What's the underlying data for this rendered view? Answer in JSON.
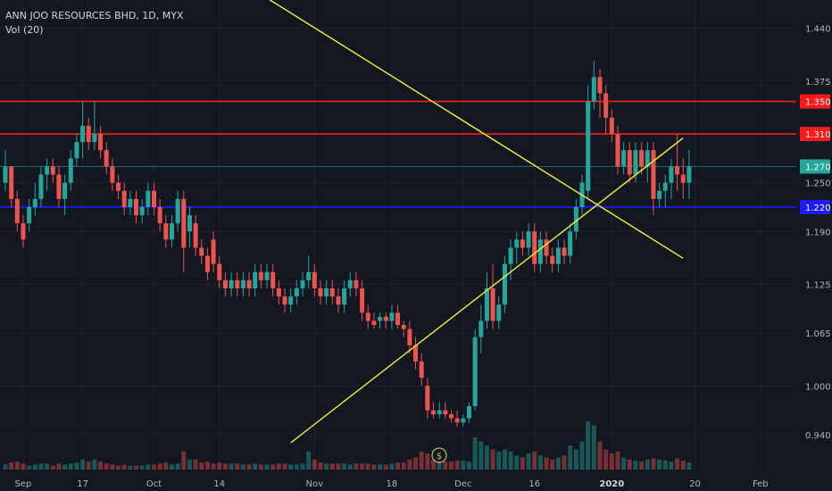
{
  "header": {
    "symbol_line": "ANN JOO RESOURCES BHD, 1D, MYX",
    "volume_label": "Vol (20)"
  },
  "colors": {
    "background": "#131722",
    "up": "#26a69a",
    "down": "#ef5350",
    "grid": "#1e222d",
    "axis_text": "#b2b5be",
    "resistance": "#ff1a1a",
    "support": "#1c1cff",
    "trendline": "#f2f23a"
  },
  "chart_data": {
    "type": "candlestick",
    "title": "ANN JOO RESOURCES BHD, 1D, MYX",
    "price_axis": {
      "ticks": [
        "1.440",
        "1.375",
        "1.310",
        "1.250",
        "1.190",
        "1.125",
        "1.065",
        "1.000",
        "0.940"
      ],
      "ylim": [
        0.93,
        1.455
      ]
    },
    "time_axis": {
      "ticks": [
        "Sep",
        "17",
        "Oct",
        "14",
        "Nov",
        "18",
        "Dec",
        "16",
        "2020",
        "20",
        "Feb"
      ]
    },
    "price_labels": [
      {
        "value": "1.350",
        "color": "#ff1a1a"
      },
      {
        "value": "1.310",
        "color": "#ff1a1a"
      },
      {
        "value": "1.270",
        "color": "#26a69a"
      },
      {
        "value": "1.220",
        "color": "#1c1cff"
      }
    ],
    "horizontal_lines": [
      {
        "price": 1.35,
        "color": "#ff1a1a",
        "role": "resistance"
      },
      {
        "price": 1.31,
        "color": "#ff1a1a",
        "role": "resistance"
      },
      {
        "price": 1.27,
        "color": "#26a69a",
        "role": "last price"
      },
      {
        "price": 1.22,
        "color": "#1c1cff",
        "role": "support"
      }
    ],
    "trendlines": [
      {
        "role": "descending",
        "from": {
          "bar": 39,
          "price": 1.5
        },
        "to": {
          "bar": 114,
          "price": 1.157
        }
      },
      {
        "role": "ascending",
        "from": {
          "bar": 48,
          "price": 0.93
        },
        "to": {
          "bar": 114,
          "price": 1.305
        }
      }
    ],
    "candles": [
      [
        1.25,
        1.29,
        1.24,
        1.27,
        0.25
      ],
      [
        1.27,
        1.27,
        1.22,
        1.23,
        0.35
      ],
      [
        1.23,
        1.24,
        1.19,
        1.2,
        0.4
      ],
      [
        1.2,
        1.21,
        1.17,
        1.18,
        0.3
      ],
      [
        1.2,
        1.23,
        1.19,
        1.22,
        0.2
      ],
      [
        1.22,
        1.25,
        1.21,
        1.23,
        0.25
      ],
      [
        1.23,
        1.27,
        1.22,
        1.26,
        0.3
      ],
      [
        1.26,
        1.28,
        1.24,
        1.27,
        0.3
      ],
      [
        1.27,
        1.28,
        1.25,
        1.26,
        0.2
      ],
      [
        1.26,
        1.27,
        1.22,
        1.23,
        0.3
      ],
      [
        1.23,
        1.26,
        1.21,
        1.25,
        0.25
      ],
      [
        1.25,
        1.29,
        1.24,
        1.28,
        0.3
      ],
      [
        1.28,
        1.31,
        1.27,
        1.3,
        0.35
      ],
      [
        1.3,
        1.35,
        1.28,
        1.32,
        0.5
      ],
      [
        1.32,
        1.33,
        1.29,
        1.3,
        0.4
      ],
      [
        1.3,
        1.35,
        1.29,
        1.31,
        0.5
      ],
      [
        1.31,
        1.32,
        1.28,
        1.29,
        0.4
      ],
      [
        1.29,
        1.3,
        1.26,
        1.27,
        0.3
      ],
      [
        1.27,
        1.28,
        1.24,
        1.25,
        0.25
      ],
      [
        1.25,
        1.26,
        1.23,
        1.24,
        0.2
      ],
      [
        1.24,
        1.25,
        1.21,
        1.22,
        0.25
      ],
      [
        1.22,
        1.24,
        1.21,
        1.23,
        0.2
      ],
      [
        1.23,
        1.24,
        1.2,
        1.21,
        0.2
      ],
      [
        1.21,
        1.23,
        1.2,
        1.22,
        0.2
      ],
      [
        1.22,
        1.25,
        1.21,
        1.24,
        0.25
      ],
      [
        1.24,
        1.25,
        1.21,
        1.22,
        0.25
      ],
      [
        1.22,
        1.23,
        1.19,
        1.2,
        0.3
      ],
      [
        1.2,
        1.21,
        1.17,
        1.18,
        0.35
      ],
      [
        1.18,
        1.21,
        1.17,
        1.2,
        0.25
      ],
      [
        1.2,
        1.24,
        1.19,
        1.23,
        0.3
      ],
      [
        1.23,
        1.24,
        1.14,
        1.17,
        0.9
      ],
      [
        1.19,
        1.22,
        1.17,
        1.21,
        0.5
      ],
      [
        1.2,
        1.21,
        1.16,
        1.17,
        0.5
      ],
      [
        1.17,
        1.18,
        1.15,
        1.16,
        0.35
      ],
      [
        1.16,
        1.17,
        1.13,
        1.14,
        0.4
      ],
      [
        1.18,
        1.19,
        1.14,
        1.15,
        0.3
      ],
      [
        1.15,
        1.16,
        1.12,
        1.13,
        0.35
      ],
      [
        1.13,
        1.14,
        1.11,
        1.12,
        0.3
      ],
      [
        1.12,
        1.14,
        1.11,
        1.13,
        0.3
      ],
      [
        1.13,
        1.14,
        1.11,
        1.12,
        0.3
      ],
      [
        1.12,
        1.14,
        1.11,
        1.13,
        0.25
      ],
      [
        1.13,
        1.14,
        1.11,
        1.12,
        0.25
      ],
      [
        1.12,
        1.15,
        1.11,
        1.14,
        0.3
      ],
      [
        1.14,
        1.15,
        1.12,
        1.13,
        0.25
      ],
      [
        1.13,
        1.15,
        1.12,
        1.14,
        0.25
      ],
      [
        1.14,
        1.15,
        1.11,
        1.12,
        0.25
      ],
      [
        1.12,
        1.13,
        1.1,
        1.11,
        0.3
      ],
      [
        1.11,
        1.12,
        1.09,
        1.1,
        0.3
      ],
      [
        1.1,
        1.12,
        1.09,
        1.11,
        0.25
      ],
      [
        1.11,
        1.13,
        1.1,
        1.12,
        0.25
      ],
      [
        1.12,
        1.14,
        1.11,
        1.13,
        0.3
      ],
      [
        1.13,
        1.16,
        1.12,
        1.14,
        0.9
      ],
      [
        1.14,
        1.15,
        1.11,
        1.12,
        0.5
      ],
      [
        1.12,
        1.13,
        1.1,
        1.11,
        0.35
      ],
      [
        1.11,
        1.13,
        1.1,
        1.12,
        0.3
      ],
      [
        1.12,
        1.13,
        1.1,
        1.11,
        0.3
      ],
      [
        1.11,
        1.12,
        1.09,
        1.1,
        0.3
      ],
      [
        1.1,
        1.13,
        1.09,
        1.12,
        0.3
      ],
      [
        1.12,
        1.14,
        1.11,
        1.13,
        0.25
      ],
      [
        1.13,
        1.14,
        1.11,
        1.12,
        0.3
      ],
      [
        1.12,
        1.13,
        1.08,
        1.09,
        0.3
      ],
      [
        1.09,
        1.1,
        1.07,
        1.08,
        0.3
      ],
      [
        1.08,
        1.09,
        1.07,
        1.075,
        0.25
      ],
      [
        1.08,
        1.09,
        1.07,
        1.085,
        0.25
      ],
      [
        1.085,
        1.09,
        1.07,
        1.08,
        0.25
      ],
      [
        1.08,
        1.1,
        1.07,
        1.09,
        0.3
      ],
      [
        1.09,
        1.1,
        1.07,
        1.075,
        0.35
      ],
      [
        1.075,
        1.08,
        1.06,
        1.07,
        0.35
      ],
      [
        1.07,
        1.08,
        1.04,
        1.05,
        0.5
      ],
      [
        1.05,
        1.06,
        1.02,
        1.03,
        0.6
      ],
      [
        1.03,
        1.04,
        1.0,
        1.01,
        0.9
      ],
      [
        1.0,
        1.01,
        0.96,
        0.97,
        0.8
      ],
      [
        0.97,
        0.98,
        0.96,
        0.965,
        0.5
      ],
      [
        0.965,
        0.98,
        0.96,
        0.97,
        0.4
      ],
      [
        0.97,
        0.98,
        0.96,
        0.965,
        0.4
      ],
      [
        0.965,
        0.97,
        0.955,
        0.96,
        0.4
      ],
      [
        0.96,
        0.97,
        0.95,
        0.955,
        0.45
      ],
      [
        0.955,
        0.965,
        0.95,
        0.96,
        0.45
      ],
      [
        0.96,
        0.98,
        0.955,
        0.975,
        0.4
      ],
      [
        0.975,
        1.07,
        0.97,
        1.06,
        1.6
      ],
      [
        1.06,
        1.1,
        1.04,
        1.08,
        1.4
      ],
      [
        1.08,
        1.14,
        1.07,
        1.12,
        1.2
      ],
      [
        1.12,
        1.15,
        1.07,
        1.08,
        1.0
      ],
      [
        1.08,
        1.11,
        1.07,
        1.1,
        0.9
      ],
      [
        1.1,
        1.16,
        1.09,
        1.15,
        1.0
      ],
      [
        1.15,
        1.18,
        1.13,
        1.17,
        0.9
      ],
      [
        1.17,
        1.19,
        1.15,
        1.18,
        0.7
      ],
      [
        1.18,
        1.19,
        1.16,
        1.17,
        0.6
      ],
      [
        1.17,
        1.2,
        1.16,
        1.19,
        0.8
      ],
      [
        1.19,
        1.2,
        1.14,
        1.15,
        0.9
      ],
      [
        1.15,
        1.19,
        1.14,
        1.18,
        0.7
      ],
      [
        1.18,
        1.19,
        1.15,
        1.16,
        0.6
      ],
      [
        1.16,
        1.17,
        1.14,
        1.15,
        0.5
      ],
      [
        1.15,
        1.18,
        1.14,
        1.17,
        0.6
      ],
      [
        1.17,
        1.18,
        1.15,
        1.16,
        0.7
      ],
      [
        1.16,
        1.2,
        1.15,
        1.19,
        1.2
      ],
      [
        1.19,
        1.23,
        1.18,
        1.22,
        1.0
      ],
      [
        1.22,
        1.26,
        1.21,
        1.25,
        1.4
      ],
      [
        1.24,
        1.37,
        1.23,
        1.35,
        2.4
      ],
      [
        1.35,
        1.4,
        1.34,
        1.38,
        2.2
      ],
      [
        1.38,
        1.39,
        1.33,
        1.36,
        1.4
      ],
      [
        1.36,
        1.37,
        1.31,
        1.33,
        1.0
      ],
      [
        1.33,
        1.34,
        1.3,
        1.31,
        0.8
      ],
      [
        1.31,
        1.32,
        1.26,
        1.27,
        0.9
      ],
      [
        1.27,
        1.3,
        1.26,
        1.29,
        0.6
      ],
      [
        1.29,
        1.3,
        1.25,
        1.26,
        0.5
      ],
      [
        1.26,
        1.3,
        1.25,
        1.29,
        0.45
      ],
      [
        1.29,
        1.3,
        1.26,
        1.27,
        0.4
      ],
      [
        1.27,
        1.3,
        1.25,
        1.29,
        0.5
      ],
      [
        1.29,
        1.3,
        1.21,
        1.23,
        0.55
      ],
      [
        1.23,
        1.25,
        1.22,
        1.24,
        0.5
      ],
      [
        1.24,
        1.26,
        1.22,
        1.25,
        0.45
      ],
      [
        1.25,
        1.28,
        1.23,
        1.27,
        0.4
      ],
      [
        1.27,
        1.31,
        1.24,
        1.26,
        0.55
      ],
      [
        1.26,
        1.28,
        1.23,
        1.25,
        0.45
      ],
      [
        1.25,
        1.29,
        1.23,
        1.27,
        0.35
      ]
    ]
  }
}
